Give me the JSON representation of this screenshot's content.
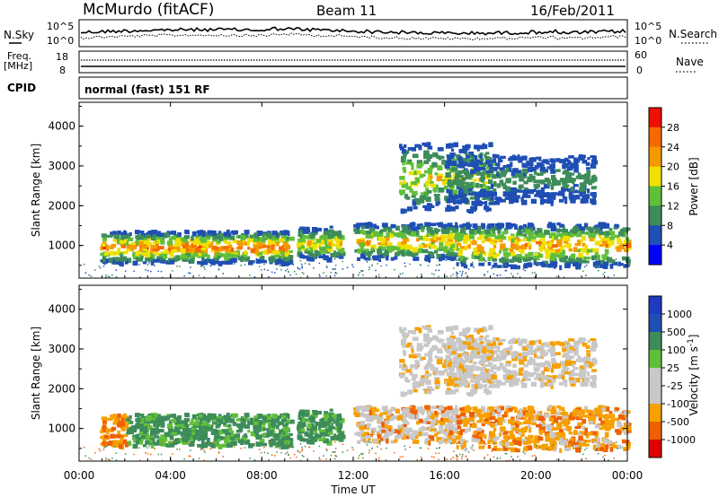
{
  "header": {
    "station": "McMurdo (fitACF)",
    "beam": "Beam 11",
    "date": "16/Feb/2011"
  },
  "strips": {
    "nsky_label": "N.Sky",
    "nsky_ticks": [
      "10^5",
      "10^0"
    ],
    "nsearch_label": "N.Search",
    "nsearch_ticks": [
      "10^5",
      "10^0"
    ],
    "freq_label_1": "Freq.",
    "freq_label_2": "[MHz]",
    "freq_ticks": [
      "18",
      "8"
    ],
    "nave_label": "Nave",
    "nave_ticks": [
      "60",
      "0"
    ],
    "cpid_label": "CPID",
    "cpid_text": "normal (fast) 151 RF"
  },
  "colors": {
    "power_scale": [
      "#0000ff",
      "#1f4fb4",
      "#3d8c5a",
      "#60bf38",
      "#f0e000",
      "#f59a00",
      "#f56a00",
      "#ee1000"
    ],
    "velocity_scale": [
      "#e00000",
      "#f06000",
      "#f7a000",
      "#c8c8c8",
      "#c8c8c8",
      "#60bf38",
      "#3d8c5a",
      "#1f4fb4",
      "#1f3cc0"
    ]
  },
  "chart_data": [
    {
      "type": "heatmap",
      "name": "power",
      "ylabel": "Slant Range [km]",
      "yticks": [
        "4000",
        "3000",
        "2000",
        "1000"
      ],
      "ylim": [
        180,
        4600
      ],
      "x_ticks": [
        "00:00",
        "04:00",
        "08:00",
        "12:00",
        "16:00",
        "20:00",
        "00:00"
      ],
      "colorbar": {
        "label": "Power [dB]",
        "ticks": [
          "28",
          "24",
          "20",
          "16",
          "12",
          "8",
          "4"
        ],
        "range": [
          0,
          32
        ]
      },
      "features": [
        {
          "t": [
            0.9,
            9.2
          ],
          "range_km": [
            600,
            1400
          ],
          "level_db": [
            4,
            30
          ]
        },
        {
          "t": [
            9.5,
            11.5
          ],
          "range_km": [
            700,
            1500
          ],
          "level_db": [
            4,
            24
          ]
        },
        {
          "t": [
            12.0,
            16.5
          ],
          "range_km": [
            700,
            1600
          ],
          "level_db": [
            4,
            26
          ]
        },
        {
          "t": [
            14.0,
            18.0
          ],
          "range_km": [
            1900,
            3600
          ],
          "level_db": [
            4,
            22
          ]
        },
        {
          "t": [
            16.5,
            24.0
          ],
          "range_km": [
            500,
            1600
          ],
          "level_db": [
            4,
            28
          ]
        },
        {
          "t": [
            16.0,
            22.5
          ],
          "range_km": [
            2100,
            3300
          ],
          "level_db": [
            4,
            12
          ]
        }
      ]
    },
    {
      "type": "heatmap",
      "name": "velocity",
      "ylabel": "Slant Range [km]",
      "yticks": [
        "4000",
        "3000",
        "2000",
        "1000"
      ],
      "ylim": [
        180,
        4600
      ],
      "xlabel": "Time UT",
      "x_ticks": [
        "00:00",
        "04:00",
        "08:00",
        "12:00",
        "16:00",
        "20:00",
        "00:00"
      ],
      "colorbar": {
        "label": "Velocity [m s^-1]",
        "ticks": [
          "1000",
          "500",
          "100",
          "25",
          "-25",
          "-100",
          "-500",
          "-1000"
        ]
      }
    }
  ]
}
